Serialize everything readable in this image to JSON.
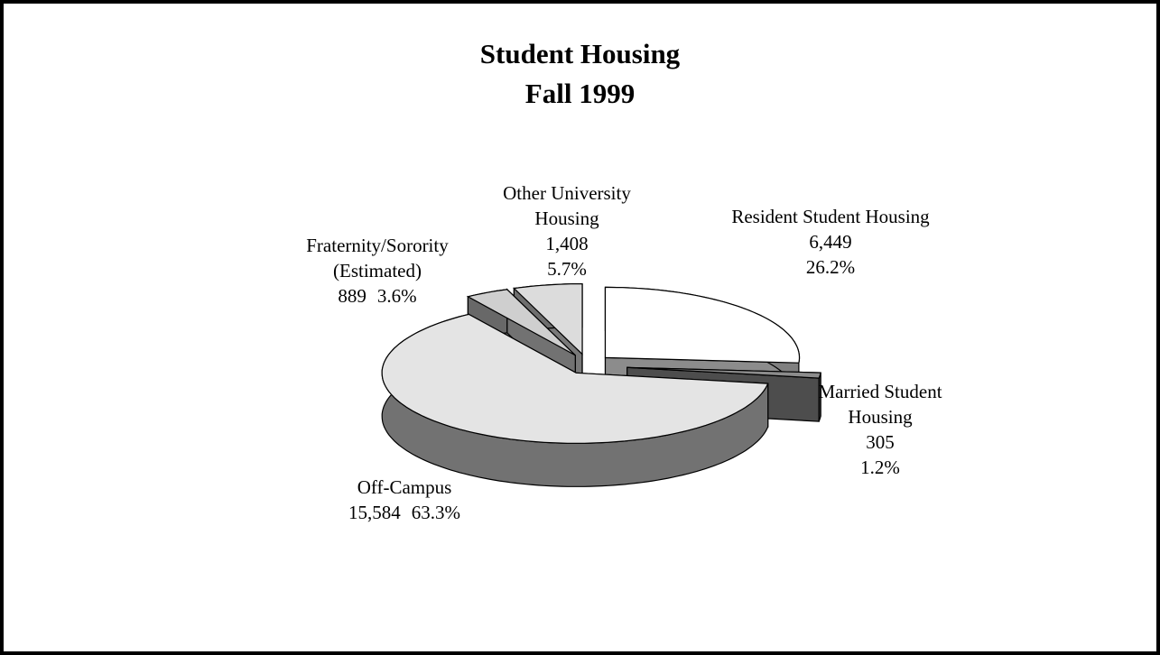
{
  "chart_data": {
    "type": "pie3d",
    "title": "Student Housing",
    "subtitle": "Fall 1999",
    "categories": [
      "Resident Student Housing",
      "Married Student Housing",
      "Off-Campus",
      "Fraternity/Sorority (Estimated)",
      "Other University Housing"
    ],
    "values": [
      6449,
      305,
      15584,
      889,
      1408
    ],
    "value_labels": [
      "6,449",
      "305",
      "15,584",
      "889",
      "1,408"
    ],
    "percentages": [
      26.2,
      1.2,
      63.3,
      3.6,
      5.7
    ],
    "percentage_labels": [
      "26.2%",
      "1.2%",
      "63.3%",
      "3.6%",
      "5.7%"
    ],
    "colors": [
      "#ffffff",
      "#8c8c8c",
      "#e4e4e4",
      "#cfcfcf",
      "#dcdcdc"
    ]
  }
}
